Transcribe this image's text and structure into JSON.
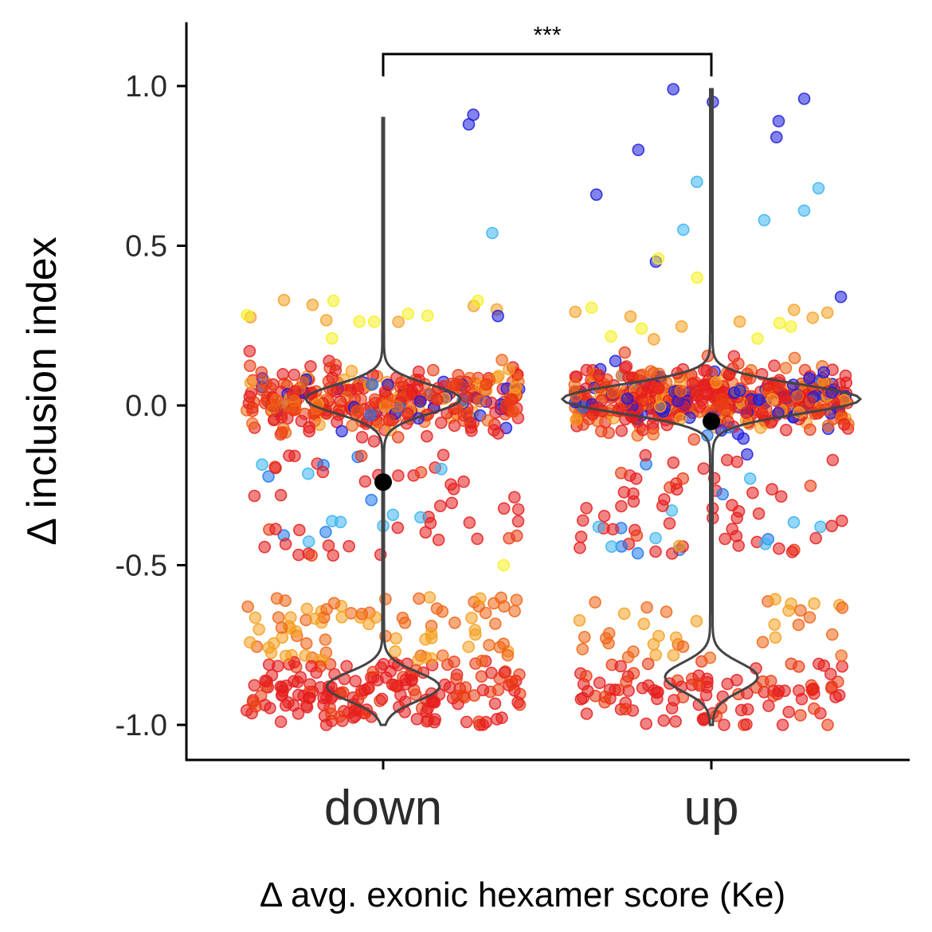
{
  "chart_data": {
    "type": "scatter",
    "subtype": "jittered strip plot with violin overlay",
    "xlabel": "Δ avg. exonic hexamer score (Ke)",
    "ylabel": "Δ inclusion index",
    "categories": [
      "down",
      "up"
    ],
    "ylim": [
      -1.1,
      1.2
    ],
    "yticks": [
      -1.0,
      -0.5,
      0.0,
      0.5,
      1.0
    ],
    "ytick_labels": [
      "-1.0",
      "-0.5",
      "0.0",
      "0.5",
      "1.0"
    ],
    "grid": false,
    "legend": "none",
    "significance": {
      "label": "***",
      "between": [
        "down",
        "up"
      ],
      "y": 1.1
    },
    "means": [
      {
        "category": "down",
        "value": -0.24
      },
      {
        "category": "up",
        "value": -0.05
      }
    ],
    "distribution_summary": [
      {
        "category": "down",
        "min": -1.0,
        "max": 0.9,
        "clusters": [
          {
            "center": 0.02,
            "weight": 0.55
          },
          {
            "center": -0.88,
            "weight": 0.4
          }
        ]
      },
      {
        "category": "up",
        "min": -1.0,
        "max": 0.99,
        "clusters": [
          {
            "center": 0.02,
            "weight": 0.72
          },
          {
            "center": -0.85,
            "weight": 0.22
          }
        ]
      }
    ],
    "highlighted_points": [
      {
        "category": "down",
        "y": 0.88,
        "color": "#1d1ddc"
      },
      {
        "category": "down",
        "y": 0.91,
        "color": "#1d1ddc"
      },
      {
        "category": "down",
        "y": 0.54,
        "color": "#3cb4f0"
      },
      {
        "category": "down",
        "y": 0.28,
        "color": "#1d1ddc"
      },
      {
        "category": "down",
        "y": 0.33,
        "color": "#f5a020"
      },
      {
        "category": "down",
        "y": -0.5,
        "color": "#f5f020"
      },
      {
        "category": "down",
        "y": -0.35,
        "color": "#3cb4f0"
      },
      {
        "category": "up",
        "y": 0.99,
        "color": "#1d1ddc"
      },
      {
        "category": "up",
        "y": 0.96,
        "color": "#1d1ddc"
      },
      {
        "category": "up",
        "y": 0.95,
        "color": "#1d1ddc"
      },
      {
        "category": "up",
        "y": 0.89,
        "color": "#1d1ddc"
      },
      {
        "category": "up",
        "y": 0.84,
        "color": "#1d1ddc"
      },
      {
        "category": "up",
        "y": 0.8,
        "color": "#1d1ddc"
      },
      {
        "category": "up",
        "y": 0.7,
        "color": "#3cb4f0"
      },
      {
        "category": "up",
        "y": 0.68,
        "color": "#3cb4f0"
      },
      {
        "category": "up",
        "y": 0.66,
        "color": "#1d1ddc"
      },
      {
        "category": "up",
        "y": 0.61,
        "color": "#3cb4f0"
      },
      {
        "category": "up",
        "y": 0.58,
        "color": "#3cb4f0"
      },
      {
        "category": "up",
        "y": 0.55,
        "color": "#3cb4f0"
      },
      {
        "category": "up",
        "y": 0.45,
        "color": "#1d1ddc"
      },
      {
        "category": "up",
        "y": 0.46,
        "color": "#f5f020"
      },
      {
        "category": "up",
        "y": 0.4,
        "color": "#f5f020"
      },
      {
        "category": "up",
        "y": 0.34,
        "color": "#1d1ddc"
      },
      {
        "category": "up",
        "y": -0.44,
        "color": "#f5a020"
      },
      {
        "category": "up",
        "y": -0.38,
        "color": "#3cb4f0"
      }
    ],
    "point_colors": [
      "#1d1ddc",
      "#1e78f0",
      "#3cb4f0",
      "#f5f020",
      "#f5a020",
      "#f06414",
      "#eb3c14",
      "#e61e1e"
    ]
  }
}
